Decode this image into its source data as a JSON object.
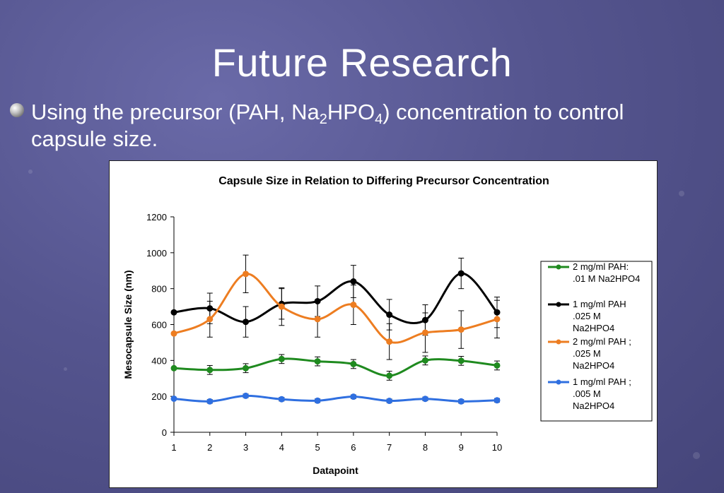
{
  "slide": {
    "title": "Future Research",
    "bullet": {
      "lead": "Using the precursor (PAH, ",
      "formula_na": "Na",
      "formula_sub1": "2",
      "formula_hpo": "HPO",
      "formula_sub2": "4",
      "tail": ") concentration to control capsule size."
    }
  },
  "chart_data": {
    "type": "line",
    "title": "Capsule Size in Relation to Differing Precursor Concentration",
    "xlabel": "Datapoint",
    "ylabel": "Mesocapsule Size (nm)",
    "x": [
      1,
      2,
      3,
      4,
      5,
      6,
      7,
      8,
      9,
      10
    ],
    "ylim": [
      0,
      1200
    ],
    "yticks": [
      0,
      200,
      400,
      600,
      800,
      1000,
      1200
    ],
    "grid": false,
    "legend_position": "right",
    "series": [
      {
        "name": "2 mg/ml PAH: .01 M Na2HPO4",
        "legend_lines": [
          "2 mg/ml PAH:",
          ".01 M Na2HPO4"
        ],
        "color": "#1f8a1f",
        "values": [
          357,
          347,
          357,
          408,
          395,
          380,
          315,
          400,
          398,
          372
        ],
        "errors": [
          0,
          25,
          25,
          25,
          25,
          25,
          25,
          25,
          25,
          25
        ]
      },
      {
        "name": "1 mg/ml PAH .025 M Na2HPO4",
        "legend_lines": [
          "1 mg/ml PAH",
          ".025 M",
          "Na2HPO4"
        ],
        "color": "#000000",
        "values": [
          668,
          690,
          615,
          715,
          730,
          840,
          655,
          625,
          885,
          668
        ],
        "errors": [
          0,
          85,
          85,
          85,
          85,
          90,
          85,
          85,
          85,
          85
        ]
      },
      {
        "name": "2 mg/ml PAH ; .025 M Na2HPO4",
        "legend_lines": [
          "2 mg/ml PAH ;",
          ".025 M",
          "Na2HPO4"
        ],
        "color": "#ed7d21",
        "values": [
          550,
          630,
          882,
          700,
          630,
          710,
          505,
          555,
          572,
          630
        ],
        "errors": [
          0,
          100,
          105,
          105,
          100,
          110,
          100,
          110,
          105,
          105
        ]
      },
      {
        "name": "1 mg/ml PAH ; .005 M Na2HPO4",
        "legend_lines": [
          "1 mg/ml PAH ;",
          ".005 M",
          "Na2HPO4"
        ],
        "color": "#2f6fe0",
        "values": [
          187,
          172,
          203,
          184,
          176,
          198,
          175,
          186,
          172,
          178
        ],
        "errors": [
          0,
          10,
          10,
          10,
          10,
          10,
          10,
          10,
          10,
          10
        ]
      }
    ]
  }
}
